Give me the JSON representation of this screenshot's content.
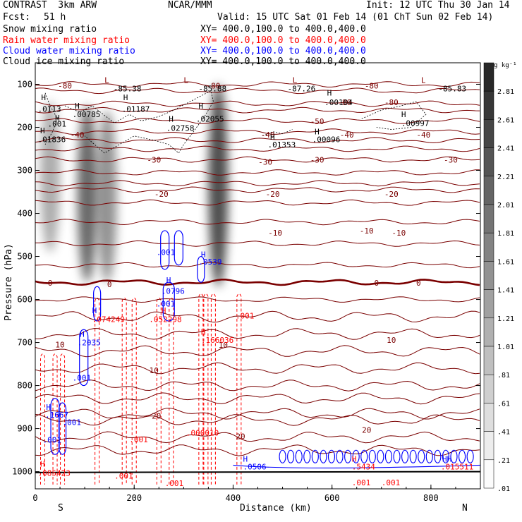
{
  "header": {
    "title_left": "CONTRAST  3km ARW",
    "title_center": "NCAR/MMM",
    "init": "Init: 12 UTC Thu 30 Jan 14",
    "fcst_label": "Fcst:",
    "fcst_value": "51 h",
    "valid": "Valid: 15 UTC Sat 01 Feb 14 (01 ChT Sun 02 Feb 14)",
    "fields": [
      {
        "name": "Snow mixing ratio",
        "xy": "XY= 400.0,100.0 to 400.0,400.0",
        "color": "#000000"
      },
      {
        "name": "Rain water mixing ratio",
        "xy": "XY= 400.0,100.0 to 400.0,400.0",
        "color": "#ff0000"
      },
      {
        "name": "Cloud water mixing ratio",
        "xy": "XY= 400.0,100.0 to 400.0,400.0",
        "color": "#0000ff"
      },
      {
        "name": "Cloud ice mixing ratio",
        "xy": "XY= 400.0,100.0 to 400.0,400.0",
        "color": "#000000"
      }
    ]
  },
  "chart_data": {
    "type": "contour-cross-section",
    "xlabel": "Distance (km)",
    "ylabel": "Pressure (hPa)",
    "xlim": [
      0,
      900
    ],
    "ylim": [
      1040,
      50
    ],
    "x_ticks": [
      0,
      200,
      400,
      600,
      800
    ],
    "y_ticks": [
      100,
      200,
      300,
      400,
      500,
      600,
      700,
      800,
      900,
      1000
    ],
    "left_end_label": "S",
    "right_end_label": "N",
    "colorbar": {
      "unit": "g kg⁻¹",
      "labels": [
        "2.81",
        "2.61",
        "2.41",
        "2.21",
        "2.01",
        "1.81",
        "1.61",
        "1.41",
        "1.21",
        "1.01",
        ".81",
        ".61",
        ".41",
        ".21",
        ".01"
      ]
    },
    "temperature_contours": [
      {
        "level": "-80",
        "p": 100
      },
      {
        "level": "-50",
        "p": 185
      },
      {
        "level": "-40",
        "p": 210
      },
      {
        "level": "-30",
        "p": 250
      },
      {
        "level": "-20",
        "p": 305
      },
      {
        "level": "-10",
        "p": 375
      },
      {
        "level": "0",
        "p": 560
      },
      {
        "level": "10",
        "p": 680
      },
      {
        "level": "20",
        "p": 865
      }
    ],
    "temperature_labels": [
      {
        "text": "-80",
        "x": 60,
        "p": 103
      },
      {
        "text": "-80",
        "x": 360,
        "p": 103
      },
      {
        "text": "-80",
        "x": 680,
        "p": 103
      },
      {
        "text": "-80",
        "x": 625,
        "p": 142
      },
      {
        "text": "-80",
        "x": 720,
        "p": 142
      },
      {
        "text": "-50",
        "x": 570,
        "p": 186
      },
      {
        "text": "-40",
        "x": 85,
        "p": 217
      },
      {
        "text": "-40",
        "x": 470,
        "p": 217
      },
      {
        "text": "-40",
        "x": 630,
        "p": 217
      },
      {
        "text": "-40",
        "x": 785,
        "p": 217
      },
      {
        "text": "-30",
        "x": 240,
        "p": 275
      },
      {
        "text": "-30",
        "x": 465,
        "p": 280
      },
      {
        "text": "-30",
        "x": 570,
        "p": 275
      },
      {
        "text": "-30",
        "x": 840,
        "p": 275
      },
      {
        "text": "-20",
        "x": 255,
        "p": 355
      },
      {
        "text": "-20",
        "x": 480,
        "p": 355
      },
      {
        "text": "-20",
        "x": 720,
        "p": 355
      },
      {
        "text": "-10",
        "x": 485,
        "p": 445
      },
      {
        "text": "-10",
        "x": 670,
        "p": 440
      },
      {
        "text": "-10",
        "x": 735,
        "p": 445
      },
      {
        "text": "0",
        "x": 30,
        "p": 561
      },
      {
        "text": "0",
        "x": 150,
        "p": 565
      },
      {
        "text": "0",
        "x": 690,
        "p": 561
      },
      {
        "text": "0",
        "x": 775,
        "p": 561
      },
      {
        "text": "10",
        "x": 50,
        "p": 705
      },
      {
        "text": "10",
        "x": 380,
        "p": 706
      },
      {
        "text": "10",
        "x": 720,
        "p": 694
      },
      {
        "text": "10",
        "x": 240,
        "p": 765
      },
      {
        "text": "20",
        "x": 245,
        "p": 870
      },
      {
        "text": "20",
        "x": 415,
        "p": 918
      },
      {
        "text": "20",
        "x": 670,
        "p": 903
      }
    ],
    "extrema_labels": [
      {
        "text": "L",
        "x": 140,
        "p": 90,
        "color": "#880000"
      },
      {
        "text": "-85.38",
        "x": 158,
        "p": 110,
        "color": "#000000"
      },
      {
        "text": "L",
        "x": 300,
        "p": 90,
        "color": "#880000"
      },
      {
        "text": "-85.88",
        "x": 330,
        "p": 110,
        "color": "#000000"
      },
      {
        "text": "L",
        "x": 520,
        "p": 90,
        "color": "#880000"
      },
      {
        "text": "-87.26",
        "x": 510,
        "p": 110,
        "color": "#000000"
      },
      {
        "text": "L",
        "x": 780,
        "p": 90,
        "color": "#880000"
      },
      {
        "text": "-85.83",
        "x": 815,
        "p": 110,
        "color": "#000000"
      },
      {
        "text": "H",
        "x": 12,
        "p": 130,
        "color": "#000000"
      },
      {
        "text": ".0113",
        "x": 5,
        "p": 157,
        "color": "#000000"
      },
      {
        "text": "H",
        "x": 80,
        "p": 150,
        "color": "#000000"
      },
      {
        "text": ".00785",
        "x": 75,
        "p": 170,
        "color": "#000000"
      },
      {
        "text": "H",
        "x": 178,
        "p": 130,
        "color": "#000000"
      },
      {
        "text": ".01187",
        "x": 175,
        "p": 157,
        "color": "#000000"
      },
      {
        "text": "H",
        "x": 270,
        "p": 180,
        "color": "#000000"
      },
      {
        "text": ".02758",
        "x": 265,
        "p": 202,
        "color": "#000000"
      },
      {
        "text": "H",
        "x": 330,
        "p": 150,
        "color": "#000000"
      },
      {
        "text": ".02055",
        "x": 325,
        "p": 180,
        "color": "#000000"
      },
      {
        "text": "H",
        "x": 590,
        "p": 120,
        "color": "#000000"
      },
      {
        "text": ".00104",
        "x": 585,
        "p": 142,
        "color": "#000000"
      },
      {
        "text": "H",
        "x": 740,
        "p": 170,
        "color": "#000000"
      },
      {
        "text": ".00997",
        "x": 740,
        "p": 190,
        "color": "#000000"
      },
      {
        "text": "H",
        "x": 40,
        "p": 178,
        "color": "#000000"
      },
      {
        "text": ".001",
        "x": 25,
        "p": 192,
        "color": "#000000"
      },
      {
        "text": "H",
        "x": 10,
        "p": 207,
        "color": "#000000"
      },
      {
        "text": ".01836",
        "x": 5,
        "p": 228,
        "color": "#000000"
      },
      {
        "text": "H",
        "x": 475,
        "p": 222,
        "color": "#000000"
      },
      {
        "text": ".01353",
        "x": 470,
        "p": 240,
        "color": "#000000"
      },
      {
        "text": "H",
        "x": 565,
        "p": 210,
        "color": "#000000"
      },
      {
        "text": ".00096",
        "x": 560,
        "p": 228,
        "color": "#000000"
      },
      {
        "text": ".001",
        "x": 245,
        "p": 490,
        "color": "#0000ff"
      },
      {
        "text": "H",
        "x": 335,
        "p": 495,
        "color": "#0000ff"
      },
      {
        "text": ".0539",
        "x": 330,
        "p": 512,
        "color": "#0000ff"
      },
      {
        "text": "H",
        "x": 265,
        "p": 555,
        "color": "#0000ff"
      },
      {
        "text": ".0796",
        "x": 255,
        "p": 580,
        "color": "#0000ff"
      },
      {
        "text": ".001",
        "x": 245,
        "p": 610,
        "color": "#0000ff"
      },
      {
        "text": "H",
        "x": 115,
        "p": 625,
        "color": "#0000ff"
      },
      {
        "text": ".074249",
        "x": 115,
        "p": 646,
        "color": "#ff0000"
      },
      {
        "text": "H",
        "x": 255,
        "p": 625,
        "color": "#ff0000"
      },
      {
        "text": ".052298",
        "x": 230,
        "p": 646,
        "color": "#ff0000"
      },
      {
        "text": "H",
        "x": 335,
        "p": 675,
        "color": "#ff0000"
      },
      {
        "text": ".166036",
        "x": 335,
        "p": 694,
        "color": "#ff0000"
      },
      {
        "text": ".001",
        "x": 405,
        "p": 638,
        "color": "#ff0000"
      },
      {
        "text": "H",
        "x": 90,
        "p": 680,
        "color": "#0000ff"
      },
      {
        "text": ".2035",
        "x": 85,
        "p": 700,
        "color": "#0000ff"
      },
      {
        "text": ".001",
        "x": 75,
        "p": 782,
        "color": "#0000ff"
      },
      {
        "text": "H",
        "x": 22,
        "p": 850,
        "color": "#0000ff"
      },
      {
        "text": ".1667",
        "x": 20,
        "p": 868,
        "color": "#0000ff"
      },
      {
        "text": ".001",
        "x": 55,
        "p": 885,
        "color": "#0000ff"
      },
      {
        "text": ".001",
        "x": 15,
        "p": 926,
        "color": "#0000ff"
      },
      {
        "text": ".001",
        "x": 190,
        "p": 925,
        "color": "#ff0000"
      },
      {
        "text": ".000010",
        "x": 305,
        "p": 910,
        "color": "#ff0000"
      },
      {
        "text": "H",
        "x": 10,
        "p": 982,
        "color": "#ff0000"
      },
      {
        "text": ".085423",
        "x": 5,
        "p": 1003,
        "color": "#ff0000"
      },
      {
        "text": ".001",
        "x": 160,
        "p": 1010,
        "color": "#ff0000"
      },
      {
        "text": ".001",
        "x": 262,
        "p": 1027,
        "color": "#ff0000"
      },
      {
        "text": "H",
        "x": 420,
        "p": 970,
        "color": "#0000ff"
      },
      {
        "text": ".0506",
        "x": 420,
        "p": 988,
        "color": "#0000ff"
      },
      {
        "text": "H",
        "x": 640,
        "p": 970,
        "color": "#ff0000"
      },
      {
        "text": ".5434",
        "x": 640,
        "p": 988,
        "color": "#ff0000"
      },
      {
        "text": "HH",
        "x": 823,
        "p": 970,
        "color": "#0000ff"
      },
      {
        "text": ".015511",
        "x": 820,
        "p": 988,
        "color": "#ff0000"
      },
      {
        "text": ".001",
        "x": 640,
        "p": 1025,
        "color": "#ff0000"
      },
      {
        "text": ".001",
        "x": 700,
        "p": 1025,
        "color": "#ff0000"
      }
    ],
    "snow_columns": [
      {
        "x": 105,
        "p_top": 150,
        "p_bottom": 560,
        "max": 2.2
      },
      {
        "x": 145,
        "p_top": 160,
        "p_bottom": 560,
        "max": 1.6
      },
      {
        "x": 30,
        "p_top": 140,
        "p_bottom": 490,
        "max": 1.2
      },
      {
        "x": 370,
        "p_top": 100,
        "p_bottom": 570,
        "max": 2.6
      }
    ],
    "rain_columns_x": [
      15,
      40,
      55,
      125,
      180,
      200,
      250,
      275,
      335,
      345,
      360,
      412
    ]
  }
}
